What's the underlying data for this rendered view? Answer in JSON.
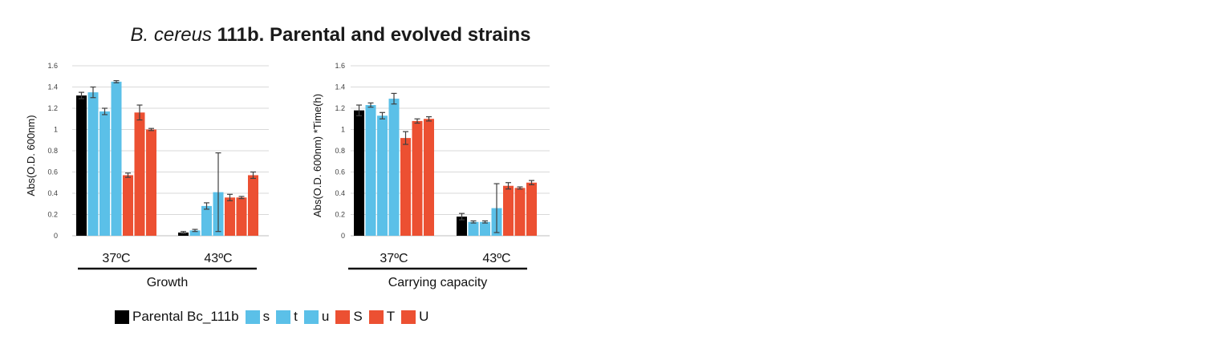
{
  "title": {
    "species": "B. cereus",
    "rest": "111b. Parental and evolved strains"
  },
  "colors": {
    "parental": "#000000",
    "evolved_s_t_u_blue": "#5bc0e8",
    "evolved_S_T_U_red": "#ec5032",
    "gridline": "#d9d9d9",
    "error_bar": "#404040"
  },
  "legend": [
    {
      "label": "Parental Bc_111b",
      "color": "#000000"
    },
    {
      "label": "s",
      "color": "#5bc0e8"
    },
    {
      "label": "t",
      "color": "#5bc0e8"
    },
    {
      "label": "u",
      "color": "#5bc0e8"
    },
    {
      "label": "S",
      "color": "#ec5032"
    },
    {
      "label": "T",
      "color": "#ec5032"
    },
    {
      "label": "U",
      "color": "#ec5032"
    }
  ],
  "chart_data": [
    {
      "type": "bar",
      "title": "",
      "group_label": "Growth",
      "ylabel": "Abs(O.D. 600nm)",
      "xlabel": "Growth",
      "ylim": [
        0,
        1.6
      ],
      "yticks": [
        0,
        0.2,
        0.4,
        0.6,
        0.8,
        1,
        1.2,
        1.4,
        1.6
      ],
      "ytick_labels": [
        "0",
        "0.2",
        "0.4",
        "0.6",
        "0.8",
        "1",
        "1.2",
        "1.4",
        "1.6"
      ],
      "grid": true,
      "categories": [
        "37ºC",
        "43ºC"
      ],
      "series": [
        {
          "name": "Parental Bc_111b",
          "values": [
            1.32,
            0.03
          ],
          "errors": [
            0.03,
            0.01
          ]
        },
        {
          "name": "s",
          "values": [
            1.35,
            0.05
          ],
          "errors": [
            0.05,
            0.01
          ]
        },
        {
          "name": "t",
          "values": [
            1.17,
            0.28
          ],
          "errors": [
            0.03,
            0.03
          ]
        },
        {
          "name": "u",
          "values": [
            1.45,
            0.41
          ],
          "errors": [
            0.01,
            0.37
          ]
        },
        {
          "name": "S",
          "values": [
            0.57,
            0.36
          ],
          "errors": [
            0.02,
            0.03
          ]
        },
        {
          "name": "T",
          "values": [
            1.16,
            0.36
          ],
          "errors": [
            0.07,
            0.01
          ]
        },
        {
          "name": "U",
          "values": [
            1.0,
            0.57
          ],
          "errors": [
            0.01,
            0.03
          ]
        }
      ]
    },
    {
      "type": "bar",
      "title": "",
      "group_label": "Carrying capacity",
      "ylabel": "Abs(O.D. 600nm)  *Time(h)",
      "xlabel": "Carrying capacity",
      "ylim": [
        0,
        1.6
      ],
      "yticks": [
        0,
        0.2,
        0.4,
        0.6,
        0.8,
        1,
        1.2,
        1.4,
        1.6
      ],
      "ytick_labels": [
        "0",
        "0.2",
        "0.4",
        "0.6",
        "0.8",
        "1",
        "1.2",
        "1.4",
        "1.6"
      ],
      "grid": true,
      "categories": [
        "37ºC",
        "43ºC"
      ],
      "series": [
        {
          "name": "Parental Bc_111b",
          "values": [
            1.18,
            0.18
          ],
          "errors": [
            0.05,
            0.03
          ]
        },
        {
          "name": "s",
          "values": [
            1.23,
            0.13
          ],
          "errors": [
            0.02,
            0.01
          ]
        },
        {
          "name": "t",
          "values": [
            1.13,
            0.13
          ],
          "errors": [
            0.03,
            0.01
          ]
        },
        {
          "name": "u",
          "values": [
            1.29,
            0.26
          ],
          "errors": [
            0.05,
            0.23
          ]
        },
        {
          "name": "S",
          "values": [
            0.92,
            0.47
          ],
          "errors": [
            0.06,
            0.03
          ]
        },
        {
          "name": "T",
          "values": [
            1.08,
            0.45
          ],
          "errors": [
            0.02,
            0.01
          ]
        },
        {
          "name": "U",
          "values": [
            1.1,
            0.5
          ],
          "errors": [
            0.02,
            0.02
          ]
        }
      ]
    }
  ]
}
